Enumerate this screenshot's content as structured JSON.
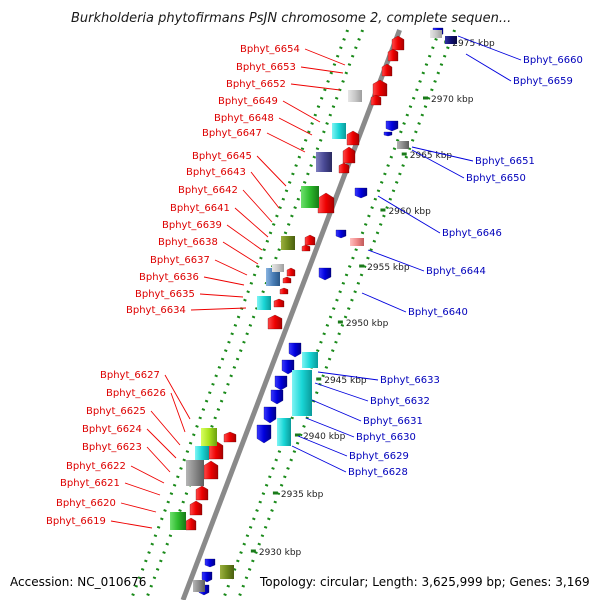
{
  "title": "Burkholderia phytofirmans PsJN chromosome 2, complete sequen...",
  "footer": {
    "accession": "Accession: NC_010676",
    "topology": "Topology: circular; Length: 3,625,999 bp; Genes: 3,169"
  },
  "colors": {
    "forward_gene": "#ee0000",
    "reverse_gene": "#0000dd",
    "backbone": "#8a8a8a",
    "tick_dots": "#1a8a1a",
    "left_label": "#dd0000",
    "right_label": "#0000bb",
    "leader_left": "#ee0000",
    "leader_right": "#0000dd"
  },
  "kbp_ticks": [
    "2975 kbp",
    "2970 kbp",
    "2965 kbp",
    "2960 kbp",
    "2955 kbp",
    "2950 kbp",
    "2945 kbp",
    "2940 kbp",
    "2935 kbp",
    "2930 kbp"
  ],
  "left_labels": [
    "Bphyt_6654",
    "Bphyt_6653",
    "Bphyt_6652",
    "Bphyt_6649",
    "Bphyt_6648",
    "Bphyt_6647",
    "Bphyt_6645",
    "Bphyt_6643",
    "Bphyt_6642",
    "Bphyt_6641",
    "Bphyt_6639",
    "Bphyt_6638",
    "Bphyt_6637",
    "Bphyt_6636",
    "Bphyt_6635",
    "Bphyt_6634",
    "Bphyt_6627",
    "Bphyt_6626",
    "Bphyt_6625",
    "Bphyt_6624",
    "Bphyt_6623",
    "Bphyt_6622",
    "Bphyt_6621",
    "Bphyt_6620",
    "Bphyt_6619"
  ],
  "right_labels": [
    "Bphyt_6660",
    "Bphyt_6659",
    "Bphyt_6651",
    "Bphyt_6650",
    "Bphyt_6646",
    "Bphyt_6644",
    "Bphyt_6640",
    "Bphyt_6633",
    "Bphyt_6632",
    "Bphyt_6631",
    "Bphyt_6630",
    "Bphyt_6629",
    "Bphyt_6628"
  ]
}
